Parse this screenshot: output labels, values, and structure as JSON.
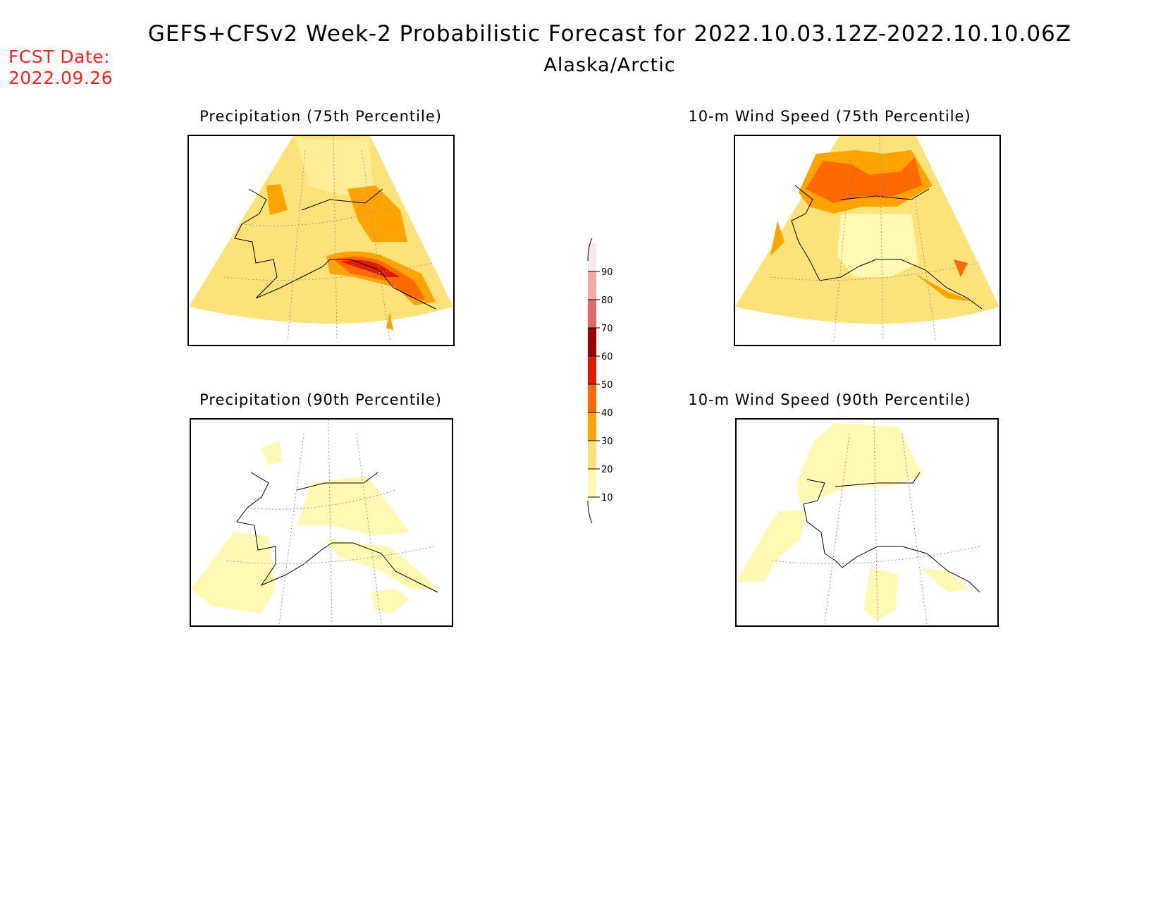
{
  "header": {
    "title": "GEFS+CFSv2 Week-2 Probabilistic Forecast for 2022.10.03.12Z-2022.10.10.06Z",
    "subtitle": "Alaska/Arctic",
    "fcst_label": "FCST Date:",
    "fcst_value": "2022.09.26"
  },
  "panels": [
    {
      "title": "Precipitation (75th Percentile)"
    },
    {
      "title": "10-m Wind Speed (75th Percentile)"
    },
    {
      "title": "Precipitation (90th Percentile)"
    },
    {
      "title": "10-m Wind Speed (90th Percentile)"
    }
  ],
  "legend": {
    "labels": [
      "10",
      "20",
      "30",
      "40",
      "50",
      "60",
      "70",
      "80",
      "90"
    ],
    "colors": [
      "#ffffff",
      "#fff9b3",
      "#fde27a",
      "#fea300",
      "#fe6a00",
      "#dd1c00",
      "#9c0000",
      "#de6a6a",
      "#f2a8a8",
      "#fde6e6"
    ]
  },
  "colors": {
    "light_yellow": "#fff9b3",
    "yellow": "#fde27a",
    "orange": "#fea300",
    "dark_orange": "#fe6a00",
    "red": "#dd1c00",
    "fcst_text": "#ff2020"
  }
}
